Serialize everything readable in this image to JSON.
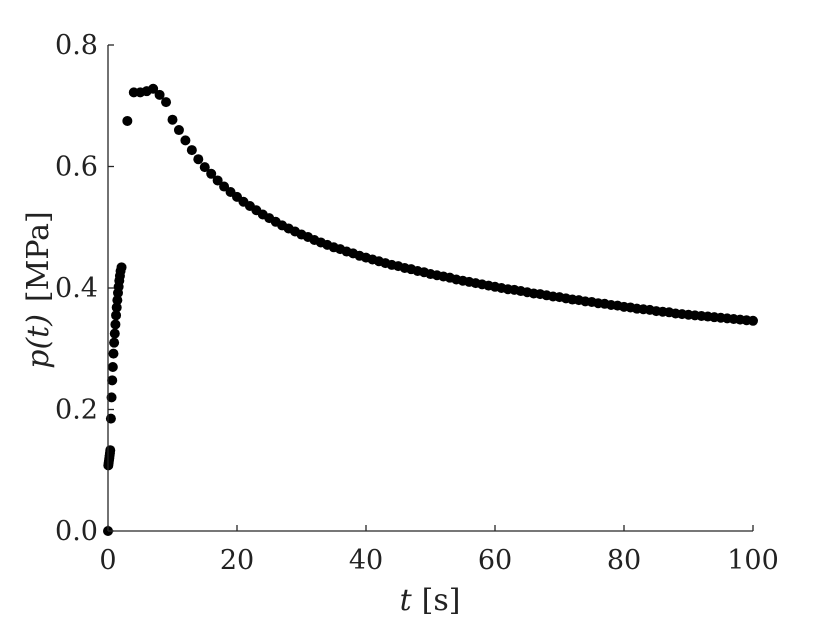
{
  "chart_data": {
    "type": "scatter",
    "title": "",
    "xlabel_var": "t",
    "xlabel_unit": "[s]",
    "ylabel_var": "p(t)",
    "ylabel_unit": "[MPa]",
    "xlim": [
      0,
      100
    ],
    "ylim": [
      0,
      0.8
    ],
    "xticks": [
      0,
      20,
      40,
      60,
      80,
      100
    ],
    "xtick_labels": [
      "0",
      "20",
      "40",
      "60",
      "80",
      "100"
    ],
    "yticks": [
      0,
      0.2,
      0.4,
      0.6,
      0.8
    ],
    "ytick_labels": [
      "0.0",
      "0.2",
      "0.4",
      "0.6",
      "0.8"
    ],
    "grid": false,
    "marker": "filled-circle",
    "marker_color": "#000000",
    "series": [
      {
        "x": [
          0,
          0.05,
          0.1,
          0.15,
          0.2,
          0.25,
          0.3,
          0.35,
          0.45,
          0.55,
          0.65,
          0.75,
          0.85,
          0.95,
          1.05,
          1.15,
          1.25,
          1.35,
          1.45,
          1.55,
          1.65,
          1.75,
          1.85,
          1.95,
          2.1,
          3,
          4,
          5,
          6,
          7,
          8,
          9,
          10,
          11,
          12,
          13,
          14,
          15,
          16,
          17,
          18,
          19,
          20,
          21,
          22,
          23,
          24,
          25,
          26,
          27,
          28,
          29,
          30,
          31,
          32,
          33,
          34,
          35,
          36,
          37,
          38,
          39,
          40,
          41,
          42,
          43,
          44,
          45,
          46,
          47,
          48,
          49,
          50,
          51,
          52,
          53,
          54,
          55,
          56,
          57,
          58,
          59,
          60,
          61,
          62,
          63,
          64,
          65,
          66,
          67,
          68,
          69,
          70,
          71,
          72,
          73,
          74,
          75,
          76,
          77,
          78,
          79,
          80,
          81,
          82,
          83,
          84,
          85,
          86,
          87,
          88,
          89,
          90,
          91,
          92,
          93,
          94,
          95,
          96,
          97,
          98,
          99,
          100
        ],
        "y": [
          0.0,
          0.108,
          0.112,
          0.116,
          0.12,
          0.124,
          0.128,
          0.133,
          0.185,
          0.22,
          0.248,
          0.27,
          0.292,
          0.31,
          0.325,
          0.34,
          0.355,
          0.368,
          0.38,
          0.392,
          0.402,
          0.412,
          0.42,
          0.428,
          0.434,
          0.675,
          0.722,
          0.722,
          0.724,
          0.728,
          0.718,
          0.706,
          0.677,
          0.66,
          0.643,
          0.627,
          0.612,
          0.599,
          0.588,
          0.577,
          0.567,
          0.558,
          0.55,
          0.542,
          0.535,
          0.528,
          0.521,
          0.515,
          0.509,
          0.503,
          0.498,
          0.493,
          0.488,
          0.484,
          0.479,
          0.475,
          0.471,
          0.467,
          0.464,
          0.46,
          0.457,
          0.453,
          0.45,
          0.447,
          0.444,
          0.441,
          0.438,
          0.436,
          0.433,
          0.431,
          0.428,
          0.426,
          0.423,
          0.421,
          0.419,
          0.417,
          0.414,
          0.412,
          0.41,
          0.408,
          0.406,
          0.404,
          0.402,
          0.4,
          0.398,
          0.397,
          0.395,
          0.393,
          0.391,
          0.39,
          0.388,
          0.386,
          0.385,
          0.383,
          0.381,
          0.38,
          0.378,
          0.377,
          0.375,
          0.374,
          0.372,
          0.371,
          0.369,
          0.368,
          0.366,
          0.365,
          0.364,
          0.362,
          0.361,
          0.36,
          0.358,
          0.357,
          0.356,
          0.355,
          0.354,
          0.353,
          0.352,
          0.351,
          0.35,
          0.349,
          0.348,
          0.347,
          0.346
        ]
      }
    ]
  }
}
